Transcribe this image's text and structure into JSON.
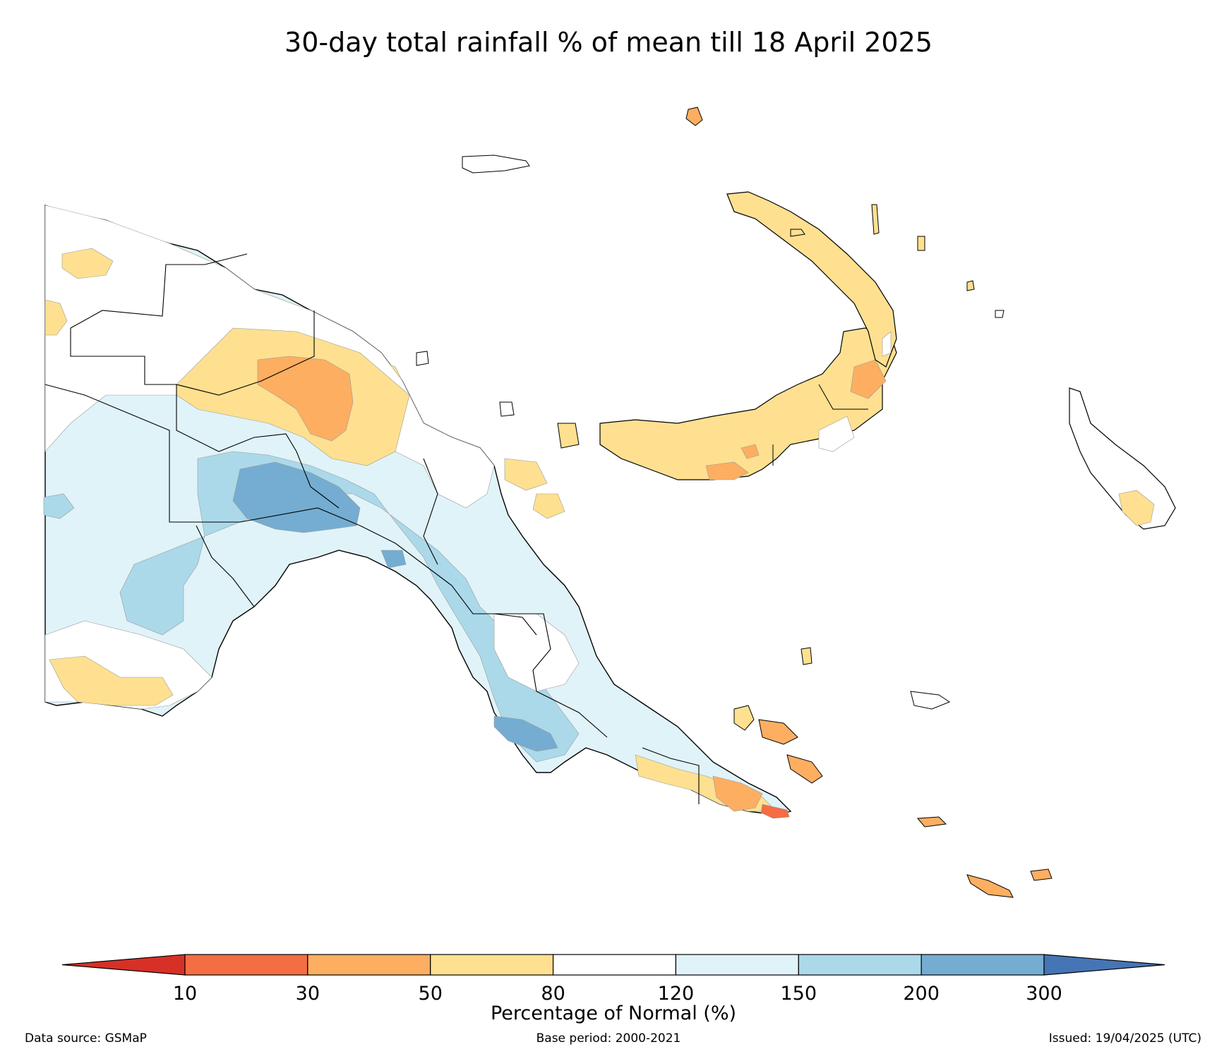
{
  "title": "30-day total rainfall % of mean till 18 April 2025",
  "colorbar": {
    "label": "Percentage of Normal (%)",
    "ticks": [
      "10",
      "30",
      "50",
      "80",
      "120",
      "150",
      "200",
      "300"
    ],
    "colors": [
      "#d73027",
      "#f46d43",
      "#fdae61",
      "#fee090",
      "#ffffff",
      "#e0f3f8",
      "#abd9e9",
      "#74add1",
      "#4575b4"
    ]
  },
  "footer": {
    "source": "Data source: GSMaP",
    "base_period": "Base period: 2000-2021",
    "issued": "Issued: 19/04/2025 (UTC)"
  }
}
